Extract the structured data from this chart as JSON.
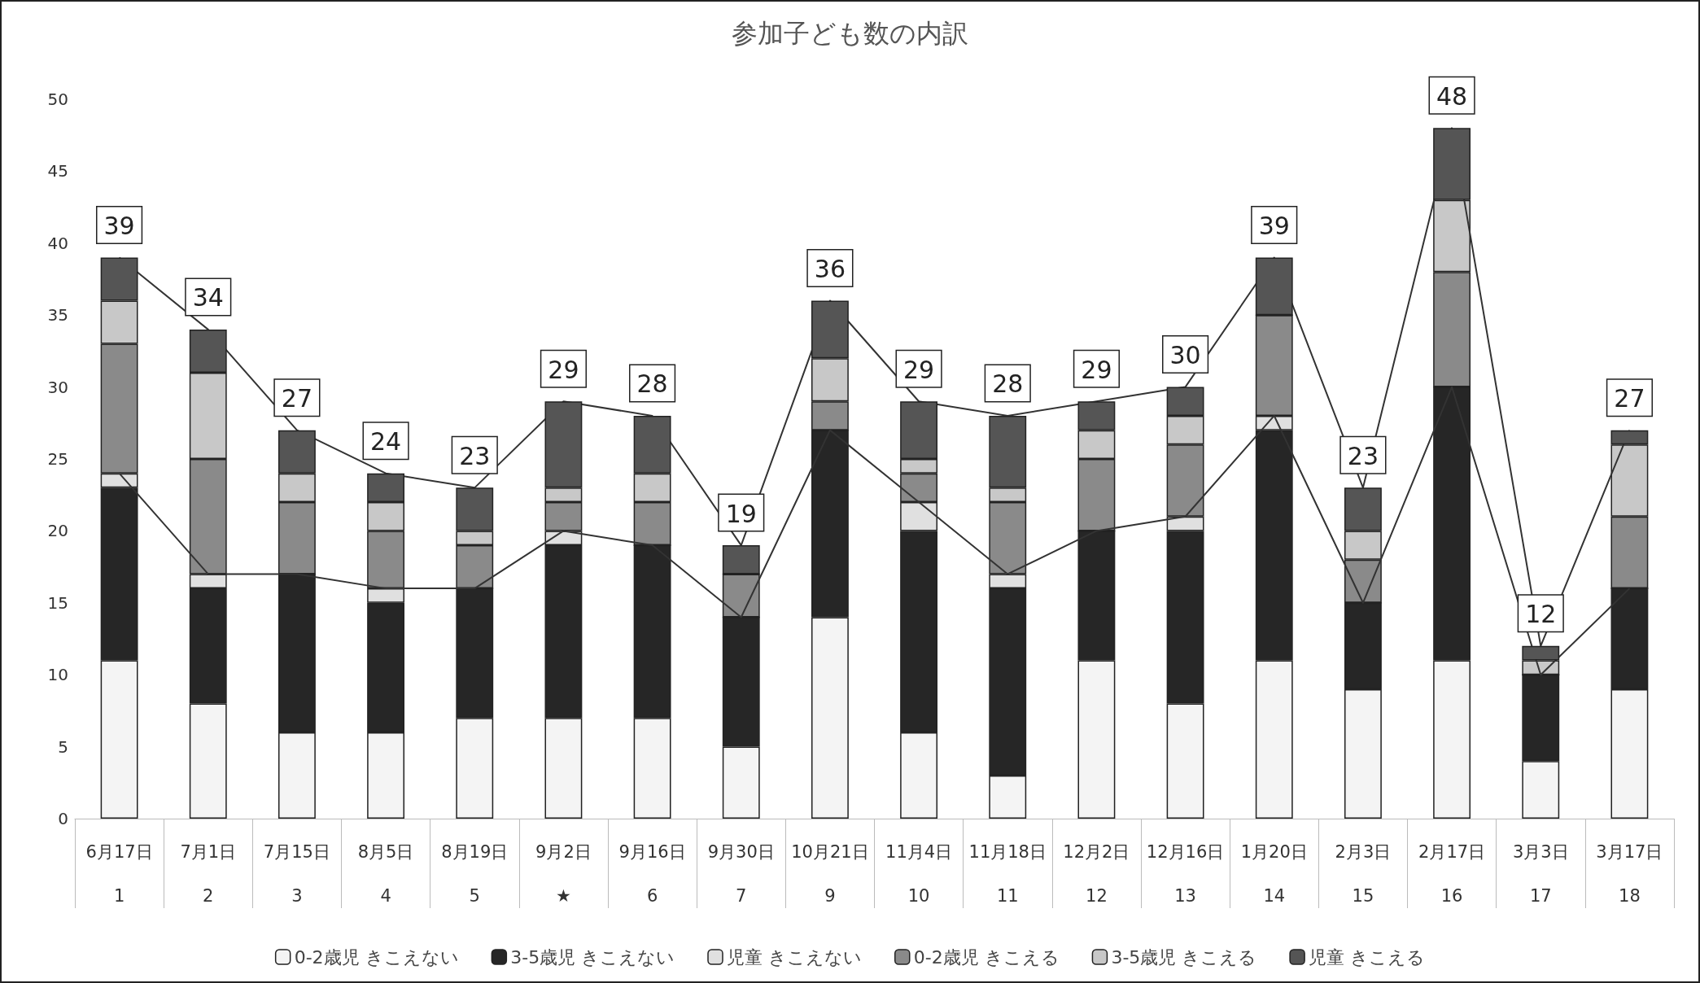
{
  "chart_data": {
    "type": "bar",
    "title": "参加子ども数の内訳",
    "stacked": true,
    "categories": [
      "6月17日\n1",
      "7月1日\n2",
      "7月15日\n3",
      "8月5日\n4",
      "8月19日\n5",
      "9月2日\n★",
      "9月16日\n6",
      "9月30日\n7",
      "10月21日\n9",
      "11月4日\n10",
      "11月18日\n11",
      "12月2日\n12",
      "12月16日\n13",
      "1月20日\n14",
      "2月3日\n15",
      "2月17日\n16",
      "3月3日\n17",
      "3月17日\n18"
    ],
    "series": [
      {
        "name": "0-2歳児 きこえない",
        "color": "#f4f4f4",
        "values": [
          11,
          8,
          6,
          6,
          7,
          7,
          7,
          5,
          14,
          6,
          3,
          11,
          8,
          11,
          9,
          11,
          4,
          9
        ]
      },
      {
        "name": "3-5歳児 きこえない",
        "color": "#262626",
        "values": [
          12,
          8,
          11,
          9,
          9,
          12,
          12,
          9,
          13,
          14,
          13,
          9,
          12,
          16,
          6,
          19,
          6,
          7
        ]
      },
      {
        "name": "児童 きこえない",
        "color": "#e0e0e0",
        "values": [
          1,
          1,
          0,
          1,
          0,
          1,
          0,
          0,
          0,
          2,
          1,
          0,
          1,
          1,
          0,
          0,
          0,
          0
        ]
      },
      {
        "name": "0-2歳児 きこえる",
        "color": "#8a8a8a",
        "values": [
          9,
          8,
          5,
          4,
          3,
          2,
          3,
          3,
          2,
          2,
          5,
          5,
          5,
          7,
          3,
          8,
          0,
          5
        ]
      },
      {
        "name": "3-5歳児 きこえる",
        "color": "#c8c8c8",
        "values": [
          3,
          6,
          2,
          2,
          1,
          1,
          2,
          0,
          3,
          1,
          1,
          2,
          2,
          0,
          2,
          5,
          1,
          5
        ]
      },
      {
        "name": "児童 きこえる",
        "color": "#555555",
        "values": [
          3,
          3,
          3,
          2,
          3,
          6,
          4,
          2,
          4,
          4,
          5,
          2,
          2,
          4,
          3,
          5,
          1,
          1
        ]
      },
      {
        "type": "line",
        "color": "#333333",
        "values": [
          24,
          17,
          17,
          16,
          16,
          20,
          19,
          14,
          27,
          22,
          17,
          20,
          21,
          28,
          15,
          30,
          10,
          16
        ]
      },
      {
        "type": "line",
        "color": "#333333",
        "values": [
          39,
          34,
          27,
          24,
          23,
          29,
          28,
          19,
          36,
          29,
          28,
          29,
          30,
          39,
          23,
          48,
          12,
          27
        ]
      }
    ],
    "totals": [
      "39",
      "34",
      "27",
      "24",
      "23",
      "29",
      "28",
      "19",
      "36",
      "29",
      "28",
      "29",
      "30",
      "39",
      "23",
      "48",
      "12",
      "27"
    ],
    "ylim": [
      0,
      50
    ],
    "yticks": [
      0,
      5,
      10,
      15,
      20,
      25,
      30,
      35,
      40,
      45,
      50
    ],
    "grid": false,
    "legend": "bottom",
    "marker": "none"
  }
}
